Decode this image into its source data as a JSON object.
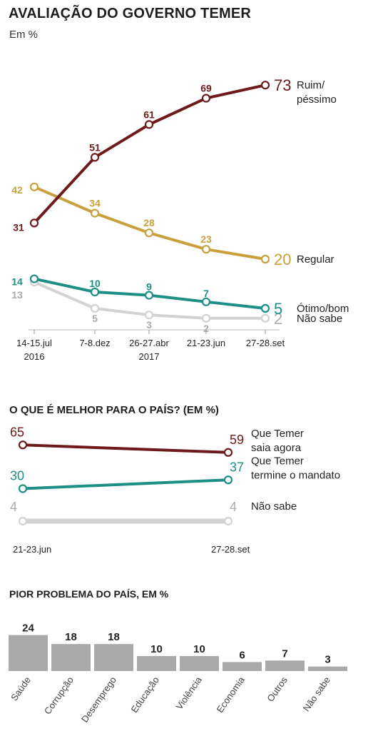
{
  "chart_data": [
    {
      "type": "line",
      "title": "AVALIAÇÃO DO GOVERNO TEMER",
      "subtitle": "Em %",
      "categories": [
        "14-15.jul 2016",
        "7-8.dez",
        "26-27.abr 2017",
        "21-23.jun",
        "27-28.set"
      ],
      "category_lines": [
        [
          "14-15.jul",
          "2016"
        ],
        [
          "7-8.dez"
        ],
        [
          "26-27.abr",
          "2017"
        ],
        [
          "21-23.jun"
        ],
        [
          "27-28.set"
        ]
      ],
      "ylim": [
        0,
        80
      ],
      "series": [
        {
          "name": "Ruim/ péssimo",
          "name_lines": [
            "Ruim/",
            "péssimo"
          ],
          "values": [
            31,
            51,
            61,
            69,
            73
          ],
          "color": "#6e1a1a"
        },
        {
          "name": "Regular",
          "name_lines": [
            "Regular"
          ],
          "values": [
            42,
            34,
            28,
            23,
            20
          ],
          "color": "#c9a13c"
        },
        {
          "name": "Ótimo/bom",
          "name_lines": [
            "Ótimo/bom"
          ],
          "values": [
            14,
            10,
            9,
            7,
            5
          ],
          "color": "#1e8f86"
        },
        {
          "name": "Não sabe",
          "name_lines": [
            "Não sabe"
          ],
          "values": [
            13,
            5,
            3,
            2,
            2
          ],
          "color": "#d2d2d2"
        }
      ]
    },
    {
      "type": "line",
      "title": "O QUE É MELHOR PARA O PAÍS? (EM %)",
      "categories": [
        "21-23.jun",
        "27-28.set"
      ],
      "ylim": [
        0,
        80
      ],
      "series": [
        {
          "name": "Que Temer saia agora",
          "name_lines": [
            "Que Temer",
            "saia agora"
          ],
          "values": [
            65,
            59
          ],
          "color": "#6e1a1a"
        },
        {
          "name": "Que Temer termine o mandato",
          "name_lines": [
            "Que Temer",
            "termine o mandato"
          ],
          "values": [
            30,
            37
          ],
          "color": "#1e8f86"
        },
        {
          "name": "Não sabe",
          "name_lines": [
            "Não sabe"
          ],
          "values": [
            4,
            4
          ],
          "color": "#d2d2d2"
        }
      ]
    },
    {
      "type": "bar",
      "title": "PIOR PROBLEMA DO PAÍS, EM %",
      "categories": [
        "Saúde",
        "Corrupção",
        "Desemprego",
        "Educação",
        "Violência",
        "Economia",
        "Outros",
        "Não sabe"
      ],
      "values": [
        24,
        18,
        18,
        10,
        10,
        6,
        7,
        3
      ],
      "ylim": [
        0,
        26
      ],
      "color": "#a9a9a9"
    }
  ]
}
